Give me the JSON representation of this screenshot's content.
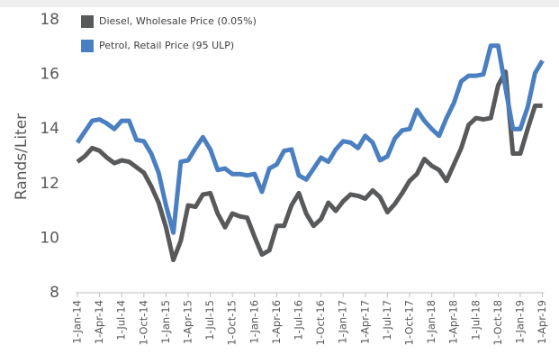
{
  "chart_data": {
    "type": "line",
    "y_label": "Rands/Liter",
    "categories": [
      "1-Jan-14",
      null,
      null,
      "1-Apr-14",
      null,
      null,
      "1-Jul-14",
      null,
      null,
      "1-Oct-14",
      null,
      null,
      "1-Jan-15",
      null,
      null,
      "1-Apr-15",
      null,
      null,
      "1-Jul-15",
      null,
      null,
      "1-Oct-15",
      null,
      null,
      "1-Jan-16",
      null,
      null,
      "1-Apr-16",
      null,
      null,
      "1-Jul-16",
      null,
      null,
      "1-Oct-16",
      null,
      null,
      "1-Jan-17",
      null,
      null,
      "1-Apr-17",
      null,
      null,
      "1-Jul-17",
      null,
      null,
      "1-Oct-17",
      null,
      null,
      "1-Jan-18",
      null,
      null,
      "1-Apr-18",
      null,
      null,
      "1-Jul-18",
      null,
      null,
      "1-Oct-18",
      null,
      null,
      "1-Jan-19",
      null,
      null,
      "1-Apr-19"
    ],
    "series": [
      {
        "name": "Diesel, Wholesale Price (0.05%)",
        "color": "#58595b",
        "values": [
          12.8,
          13.0,
          13.3,
          13.2,
          12.95,
          12.75,
          12.85,
          12.8,
          12.6,
          12.4,
          11.9,
          11.3,
          10.4,
          9.2,
          9.9,
          11.2,
          11.15,
          11.6,
          11.65,
          10.9,
          10.4,
          10.9,
          10.8,
          10.75,
          10.05,
          9.4,
          9.55,
          10.45,
          10.45,
          11.2,
          11.65,
          10.9,
          10.45,
          10.7,
          11.3,
          11.0,
          11.35,
          11.6,
          11.55,
          11.45,
          11.75,
          11.5,
          10.95,
          11.25,
          11.65,
          12.1,
          12.35,
          12.9,
          12.65,
          12.5,
          12.1,
          12.7,
          13.3,
          14.15,
          14.4,
          14.35,
          14.4,
          15.6,
          16.1,
          13.1,
          13.1,
          14.0,
          14.85,
          14.85
        ]
      },
      {
        "name": "Petrol, Retail Price (95 ULP)",
        "color": "#4a7fc1",
        "values": [
          13.5,
          13.9,
          14.3,
          14.35,
          14.2,
          14.0,
          14.3,
          14.3,
          13.6,
          13.55,
          13.1,
          12.4,
          11.2,
          10.2,
          12.8,
          12.85,
          13.3,
          13.7,
          13.25,
          12.5,
          12.55,
          12.35,
          12.35,
          12.3,
          12.35,
          11.7,
          12.55,
          12.7,
          13.2,
          13.25,
          12.3,
          12.15,
          12.55,
          12.95,
          12.8,
          13.25,
          13.55,
          13.5,
          13.3,
          13.75,
          13.5,
          12.85,
          13.0,
          13.65,
          13.95,
          14.0,
          14.7,
          14.3,
          14.0,
          13.75,
          14.4,
          14.95,
          15.75,
          15.95,
          15.95,
          16.0,
          17.05,
          17.05,
          15.5,
          14.0,
          14.0,
          14.8,
          16.05,
          16.5
        ]
      }
    ],
    "legend_position": "top-left",
    "ylim": [
      8,
      18
    ],
    "yticks": [
      8,
      10,
      12,
      14,
      16,
      18
    ]
  }
}
